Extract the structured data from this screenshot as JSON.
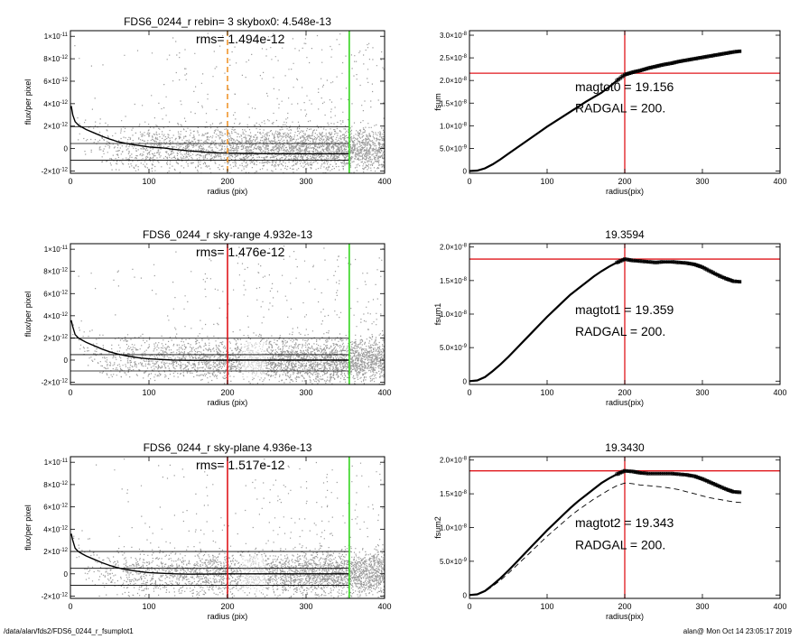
{
  "footer": {
    "left": "/data/alan/fds2/FDS6_0244_r_fsumplot1",
    "right": "alan@  Mon Oct 14 23:05:17 2019"
  },
  "colors": {
    "scatter": "#9a9a9a",
    "scatter_light": "#d2d2d2",
    "profile": "#000000",
    "red_line": "#e0161b",
    "green_line": "#33d61e",
    "orange_line": "#f0962d"
  },
  "chart_data": [
    {
      "type": "scatter",
      "title": "FDS6_0244_r rebin= 3    skybox0:  4.548e-13",
      "annotation": "rms= 1.494e-12",
      "xlabel": "radius (pix)",
      "ylabel": "flux/per pixel",
      "xlim": [
        0,
        400
      ],
      "ylim": [
        -2.2e-12,
        1.05e-11
      ],
      "xticks": [
        "0",
        "100",
        "200",
        "300",
        "400"
      ],
      "yticks": [
        {
          "v": 1e-11,
          "m": "1×10",
          "e": "-11"
        },
        {
          "v": 8e-12,
          "m": "8×10",
          "e": "-12"
        },
        {
          "v": 6e-12,
          "m": "6×10",
          "e": "-12"
        },
        {
          "v": 4e-12,
          "m": "4×10",
          "e": "-12"
        },
        {
          "v": 2e-12,
          "m": "2×10",
          "e": "-12"
        },
        {
          "v": 0,
          "m": "0",
          "e": ""
        },
        {
          "v": -2e-12,
          "m": "-2×10",
          "e": "-12"
        }
      ],
      "vlines": [
        {
          "x": 200,
          "color": "orange",
          "dashed": true
        },
        {
          "x": 355,
          "color": "green",
          "dashed": false
        }
      ],
      "hlines": [
        4.548e-13,
        -1.04e-12,
        1.95e-12
      ],
      "shade_x": null,
      "profile": {
        "x": [
          1,
          3,
          6,
          10,
          15,
          20,
          30,
          40,
          50,
          60,
          70,
          80,
          90,
          100,
          110,
          120,
          130,
          140,
          150,
          160,
          170,
          180,
          190,
          200,
          220,
          250,
          300,
          350,
          355
        ],
        "y": [
          3.8e-12,
          3e-12,
          2.4e-12,
          2.1e-12,
          1.9e-12,
          1.7e-12,
          1.4e-12,
          1.1e-12,
          8.5e-13,
          6.2e-13,
          4.8e-13,
          3.5e-13,
          2.4e-13,
          1.5e-13,
          9e-14,
          4e-14,
          -5e-14,
          -1.3e-13,
          -2e-13,
          -2.5e-13,
          -3e-13,
          -3.5e-13,
          -3.8e-13,
          -4e-13,
          -4.3e-13,
          -4.5e-13,
          -4.6e-13,
          -4.6e-13,
          -4.6e-13
        ]
      }
    },
    {
      "type": "line",
      "title": "",
      "xlabel": "radius(pix)",
      "ylabel": "fsum",
      "xlim": [
        0,
        400
      ],
      "ylim": [
        -5e-10,
        3.1e-08
      ],
      "xticks": [
        "0",
        "100",
        "200",
        "300",
        "400"
      ],
      "yticks": [
        {
          "v": 3e-08,
          "m": "3.0×10",
          "e": "-8"
        },
        {
          "v": 2.5e-08,
          "m": "2.5×10",
          "e": "-8"
        },
        {
          "v": 2e-08,
          "m": "2.0×10",
          "e": "-8"
        },
        {
          "v": 1.5e-08,
          "m": "1.5×10",
          "e": "-8"
        },
        {
          "v": 1e-08,
          "m": "1.0×10",
          "e": "-8"
        },
        {
          "v": 5e-09,
          "m": "5.0×10",
          "e": "-9"
        },
        {
          "v": 0,
          "m": "0",
          "e": ""
        }
      ],
      "cross": {
        "x": 200,
        "y": 2.16e-08
      },
      "annotations": [
        {
          "label": "magtot0 =",
          "value": "19.156",
          "xf": 0.34,
          "yf": 0.385
        },
        {
          "label": "RADGAL =",
          "value": "  200.",
          "xf": 0.34,
          "yf": 0.535
        }
      ],
      "series": [
        {
          "x": [
            0,
            10,
            20,
            30,
            40,
            50,
            60,
            70,
            80,
            90,
            100,
            110,
            120,
            130,
            140,
            150,
            160,
            170,
            180,
            190,
            200,
            210,
            220,
            230,
            240,
            250,
            260,
            270,
            280,
            290,
            300,
            310,
            320,
            330,
            340,
            350
          ],
          "y": [
            0,
            1e-10,
            6e-10,
            1.5e-09,
            2.6e-09,
            3.8e-09,
            5e-09,
            6.2e-09,
            7.4e-09,
            8.6e-09,
            9.8e-09,
            1.09e-08,
            1.2e-08,
            1.31e-08,
            1.42e-08,
            1.53e-08,
            1.63e-08,
            1.73e-08,
            1.86e-08,
            2e-08,
            2.13e-08,
            2.18e-08,
            2.22e-08,
            2.27e-08,
            2.31e-08,
            2.35e-08,
            2.38e-08,
            2.42e-08,
            2.45e-08,
            2.48e-08,
            2.51e-08,
            2.54e-08,
            2.57e-08,
            2.6e-08,
            2.63e-08,
            2.65e-08
          ],
          "markers": true,
          "band": 1.2e-10,
          "dashed": false
        }
      ]
    },
    {
      "type": "scatter",
      "title": "FDS6_0244_r sky-range  4.932e-13",
      "annotation": "rms= 1.476e-12",
      "xlabel": "radius (pix)",
      "ylabel": "flux/per pixel",
      "xlim": [
        0,
        400
      ],
      "ylim": [
        -2.2e-12,
        1.05e-11
      ],
      "xticks": [
        "0",
        "100",
        "200",
        "300",
        "400"
      ],
      "yticks": [
        {
          "v": 1e-11,
          "m": "1×10",
          "e": "-11"
        },
        {
          "v": 8e-12,
          "m": "8×10",
          "e": "-12"
        },
        {
          "v": 6e-12,
          "m": "6×10",
          "e": "-12"
        },
        {
          "v": 4e-12,
          "m": "4×10",
          "e": "-12"
        },
        {
          "v": 2e-12,
          "m": "2×10",
          "e": "-12"
        },
        {
          "v": 0,
          "m": "0",
          "e": ""
        },
        {
          "v": -2e-12,
          "m": "-2×10",
          "e": "-12"
        }
      ],
      "vlines": [
        {
          "x": 200,
          "color": "red",
          "dashed": false
        },
        {
          "x": 355,
          "color": "green",
          "dashed": false
        }
      ],
      "hlines": [
        4.932e-13,
        -9.8e-13,
        1.97e-12
      ],
      "shade_x": [
        217,
        248
      ],
      "profile": {
        "x": [
          1,
          3,
          6,
          10,
          15,
          20,
          30,
          40,
          50,
          60,
          70,
          80,
          90,
          100,
          110,
          120,
          130,
          140,
          150,
          160,
          170,
          180,
          190,
          200,
          220,
          250,
          300,
          350,
          355
        ],
        "y": [
          3.6e-12,
          3e-12,
          2.3e-12,
          2e-12,
          1.8e-12,
          1.6e-12,
          1.3e-12,
          1e-12,
          7.5e-13,
          5.5e-13,
          4e-13,
          2.8e-13,
          1.8e-13,
          1.1e-13,
          7e-14,
          4e-14,
          1e-14,
          -1e-14,
          -2e-14,
          -2e-14,
          -2e-14,
          -1e-14,
          -1e-14,
          0,
          0,
          0,
          0,
          0,
          0
        ]
      }
    },
    {
      "type": "line",
      "title": "19.3594",
      "xlabel": "radius(pix)",
      "ylabel": "fsum1",
      "xlim": [
        0,
        400
      ],
      "ylim": [
        -5e-10,
        2.05e-08
      ],
      "xticks": [
        "0",
        "100",
        "200",
        "300",
        "400"
      ],
      "yticks": [
        {
          "v": 2e-08,
          "m": "2.0×10",
          "e": "-8"
        },
        {
          "v": 1.5e-08,
          "m": "1.5×10",
          "e": "-8"
        },
        {
          "v": 1e-08,
          "m": "1.0×10",
          "e": "-8"
        },
        {
          "v": 5e-09,
          "m": "5.0×10",
          "e": "-9"
        },
        {
          "v": 0,
          "m": "0",
          "e": ""
        }
      ],
      "cross": {
        "x": 200,
        "y": 1.82e-08
      },
      "annotations": [
        {
          "label": "magtot1 =",
          "value": "19.359",
          "xf": 0.34,
          "yf": 0.46
        },
        {
          "label": "RADGAL =",
          "value": "  200.",
          "xf": 0.34,
          "yf": 0.615
        }
      ],
      "series": [
        {
          "x": [
            0,
            10,
            20,
            30,
            40,
            50,
            60,
            70,
            80,
            90,
            100,
            110,
            120,
            130,
            140,
            150,
            160,
            170,
            180,
            190,
            200,
            210,
            220,
            230,
            240,
            250,
            260,
            270,
            280,
            290,
            300,
            310,
            320,
            330,
            340,
            350
          ],
          "y": [
            0,
            1e-10,
            6e-10,
            1.5e-09,
            2.5e-09,
            3.6e-09,
            4.8e-09,
            6e-09,
            7.2e-09,
            8.4e-09,
            9.6e-09,
            1.07e-08,
            1.18e-08,
            1.29e-08,
            1.38e-08,
            1.47e-08,
            1.56e-08,
            1.64e-08,
            1.71e-08,
            1.77e-08,
            1.82e-08,
            1.8e-08,
            1.79e-08,
            1.78e-08,
            1.77e-08,
            1.78e-08,
            1.78e-08,
            1.77e-08,
            1.76e-08,
            1.74e-08,
            1.7e-08,
            1.64e-08,
            1.58e-08,
            1.53e-08,
            1.49e-08,
            1.48e-08
          ],
          "markers": true,
          "band": 0,
          "dashed": false
        }
      ]
    },
    {
      "type": "scatter",
      "title": "FDS6_0244_r sky-plane  4.936e-13",
      "annotation": "rms= 1.517e-12",
      "xlabel": "radius (pix)",
      "ylabel": "flux/per pixel",
      "xlim": [
        0,
        400
      ],
      "ylim": [
        -2.2e-12,
        1.05e-11
      ],
      "xticks": [
        "0",
        "100",
        "200",
        "300",
        "400"
      ],
      "yticks": [
        {
          "v": 1e-11,
          "m": "1×10",
          "e": "-11"
        },
        {
          "v": 8e-12,
          "m": "8×10",
          "e": "-12"
        },
        {
          "v": 6e-12,
          "m": "6×10",
          "e": "-12"
        },
        {
          "v": 4e-12,
          "m": "4×10",
          "e": "-12"
        },
        {
          "v": 2e-12,
          "m": "2×10",
          "e": "-12"
        },
        {
          "v": 0,
          "m": "0",
          "e": ""
        },
        {
          "v": -2e-12,
          "m": "-2×10",
          "e": "-12"
        }
      ],
      "vlines": [
        {
          "x": 200,
          "color": "red",
          "dashed": false
        },
        {
          "x": 355,
          "color": "green",
          "dashed": false
        }
      ],
      "hlines": [
        4.936e-13,
        -1.02e-12,
        2e-12
      ],
      "shade_x": [
        217,
        248
      ],
      "profile": {
        "x": [
          1,
          3,
          6,
          10,
          15,
          20,
          30,
          40,
          50,
          60,
          70,
          80,
          90,
          100,
          110,
          120,
          130,
          140,
          150,
          160,
          170,
          180,
          190,
          200,
          220,
          250,
          300,
          350,
          355
        ],
        "y": [
          3.6e-12,
          3e-12,
          2.3e-12,
          2e-12,
          1.8e-12,
          1.6e-12,
          1.3e-12,
          1e-12,
          7.5e-13,
          5.5e-13,
          4e-13,
          2.8e-13,
          1.8e-13,
          1.1e-13,
          7e-14,
          4e-14,
          1e-14,
          -1e-14,
          -2e-14,
          -2e-14,
          -2e-14,
          -1e-14,
          -1e-14,
          0,
          0,
          0,
          0,
          0,
          0
        ]
      }
    },
    {
      "type": "line",
      "title": "19.3430",
      "xlabel": "radius(pix)",
      "ylabel": "fsum2",
      "xlim": [
        0,
        400
      ],
      "ylim": [
        -5e-10,
        2.05e-08
      ],
      "xticks": [
        "0",
        "100",
        "200",
        "300",
        "400"
      ],
      "yticks": [
        {
          "v": 2e-08,
          "m": "2.0×10",
          "e": "-8"
        },
        {
          "v": 1.5e-08,
          "m": "1.5×10",
          "e": "-8"
        },
        {
          "v": 1e-08,
          "m": "1.0×10",
          "e": "-8"
        },
        {
          "v": 5e-09,
          "m": "5.0×10",
          "e": "-9"
        },
        {
          "v": 0,
          "m": "0",
          "e": ""
        }
      ],
      "cross": {
        "x": 200,
        "y": 1.84e-08
      },
      "annotations": [
        {
          "label": "magtot2 =",
          "value": "19.343",
          "xf": 0.34,
          "yf": 0.46
        },
        {
          "label": "RADGAL =",
          "value": "  200.",
          "xf": 0.34,
          "yf": 0.615
        }
      ],
      "series": [
        {
          "x": [
            0,
            10,
            20,
            30,
            40,
            50,
            60,
            70,
            80,
            90,
            100,
            110,
            120,
            130,
            140,
            150,
            160,
            170,
            180,
            190,
            200,
            210,
            220,
            230,
            240,
            250,
            260,
            270,
            280,
            290,
            300,
            310,
            320,
            330,
            340,
            350
          ],
          "y": [
            0,
            1e-10,
            6e-10,
            1.5e-09,
            2.5e-09,
            3.6e-09,
            4.8e-09,
            6e-09,
            7.2e-09,
            8.4e-09,
            9.6e-09,
            1.07e-08,
            1.18e-08,
            1.29e-08,
            1.39e-08,
            1.48e-08,
            1.57e-08,
            1.66e-08,
            1.73e-08,
            1.79e-08,
            1.84e-08,
            1.83e-08,
            1.81e-08,
            1.8e-08,
            1.8e-08,
            1.8e-08,
            1.8e-08,
            1.79e-08,
            1.78e-08,
            1.76e-08,
            1.72e-08,
            1.67e-08,
            1.62e-08,
            1.57e-08,
            1.53e-08,
            1.52e-08
          ],
          "markers": true,
          "band": 0,
          "dashed": false
        },
        {
          "x": [
            0,
            10,
            20,
            30,
            40,
            50,
            60,
            70,
            80,
            90,
            100,
            110,
            120,
            130,
            140,
            150,
            160,
            170,
            180,
            190,
            200,
            210,
            220,
            230,
            240,
            250,
            260,
            270,
            280,
            290,
            300,
            310,
            320,
            330,
            340,
            350
          ],
          "y": [
            0,
            8e-11,
            5e-10,
            1.3e-09,
            2.2e-09,
            3.2e-09,
            4.3e-09,
            5.4e-09,
            6.5e-09,
            7.6e-09,
            8.7e-09,
            9.7e-09,
            1.07e-08,
            1.17e-08,
            1.26e-08,
            1.34e-08,
            1.42e-08,
            1.49e-08,
            1.56e-08,
            1.62e-08,
            1.66e-08,
            1.65e-08,
            1.63e-08,
            1.62e-08,
            1.61e-08,
            1.6e-08,
            1.58e-08,
            1.56e-08,
            1.53e-08,
            1.5e-08,
            1.47e-08,
            1.44e-08,
            1.42e-08,
            1.4e-08,
            1.38e-08,
            1.37e-08
          ],
          "markers": false,
          "band": 0,
          "dashed": true
        }
      ]
    }
  ]
}
